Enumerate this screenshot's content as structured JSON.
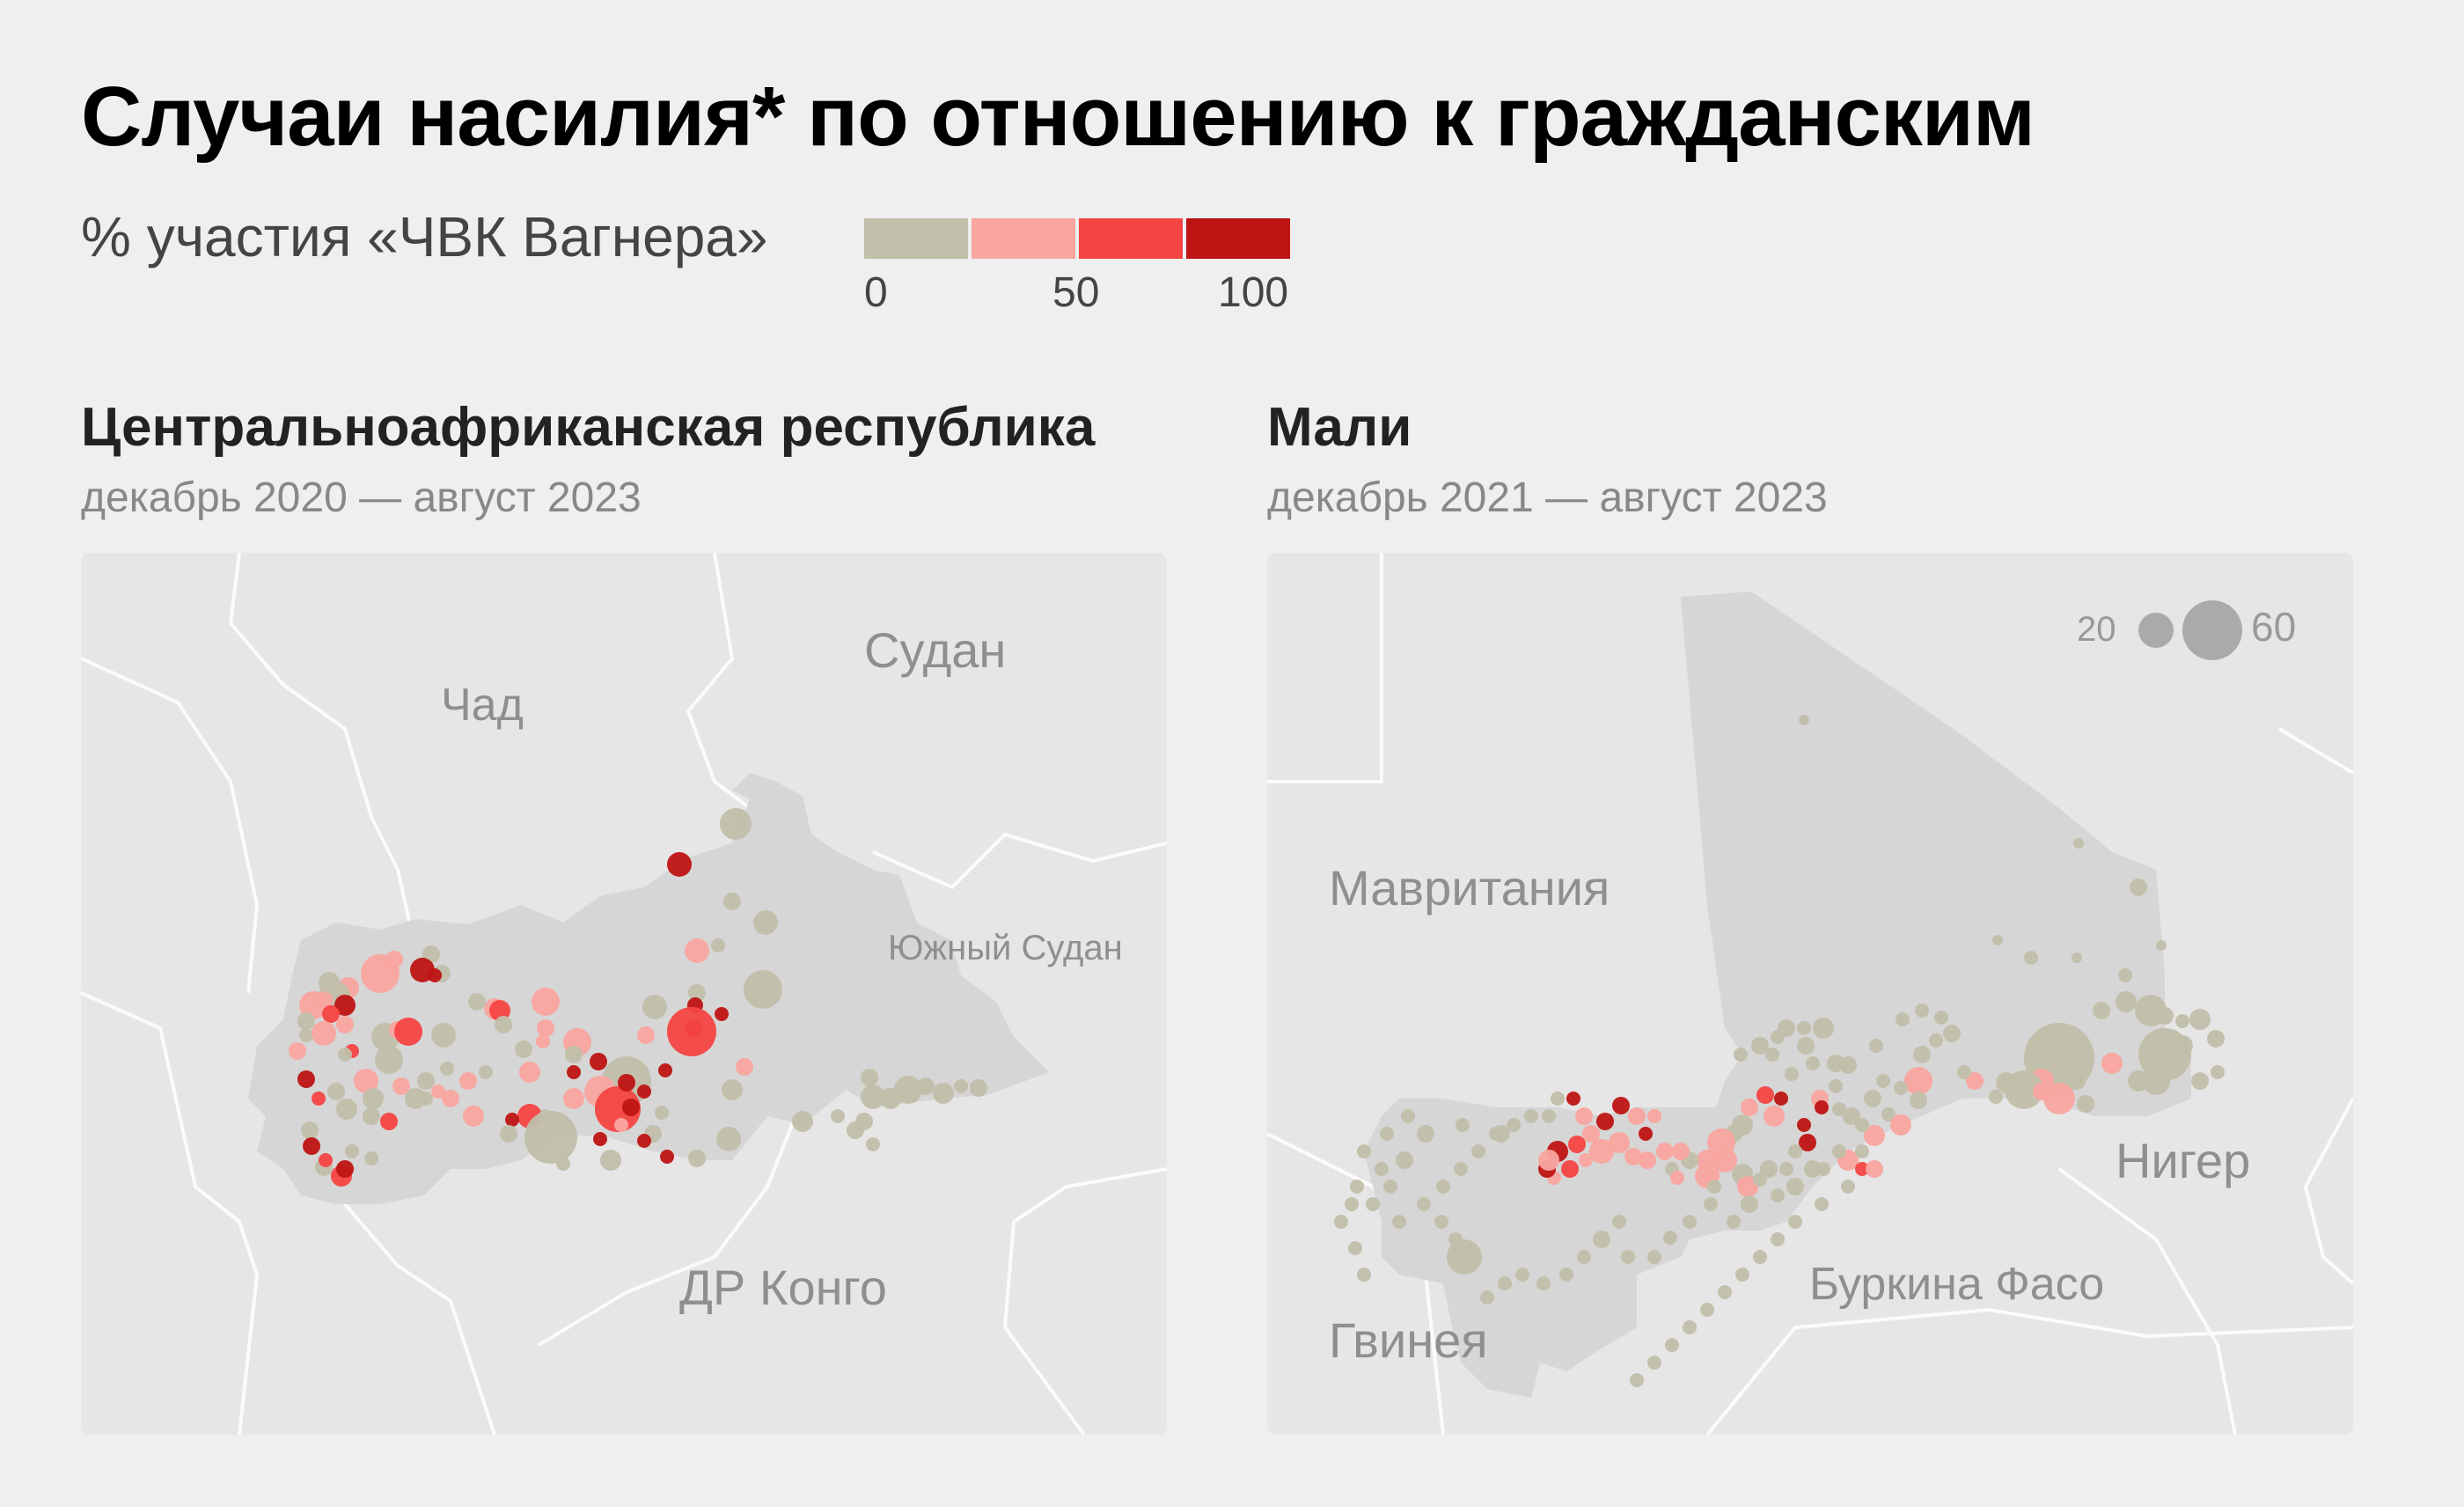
{
  "title": "Случаи насилия* по отношению к гражданским",
  "legend": {
    "label": "% участия «ЧВК Вагнера»",
    "colors": [
      "#c1bfaa",
      "#f9a5a0",
      "#f44443",
      "#be1413"
    ],
    "ticks": [
      "0",
      "50",
      "100"
    ]
  },
  "maps": [
    {
      "title": "Центральноафриканская республика",
      "period": "декабрь 2020 — август 2023",
      "country_labels": [
        "Чад",
        "Судан",
        "Южный Судан",
        "ДР Конго"
      ]
    },
    {
      "title": "Мали",
      "period": "декабрь 2021 — август 2023",
      "country_labels": [
        "Мавритания",
        "Нигер",
        "Буркина Фасо",
        "Гвинея"
      ],
      "size_legend": {
        "small": "20",
        "large": "60"
      }
    }
  ]
}
